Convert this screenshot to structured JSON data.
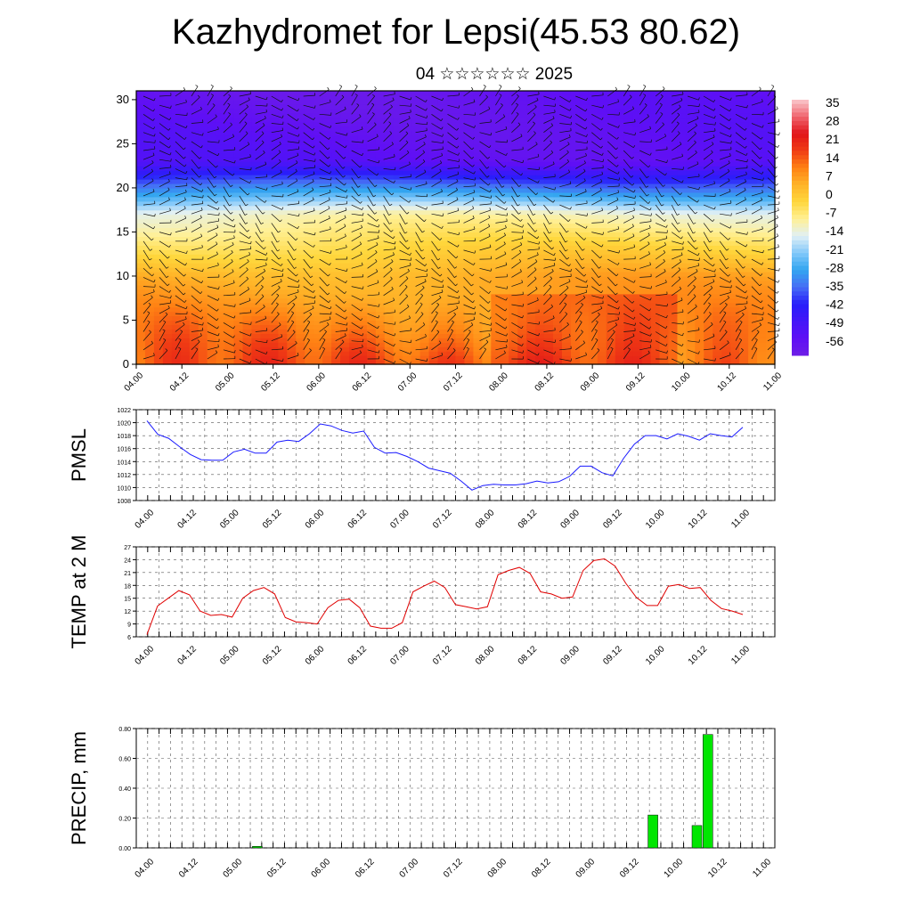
{
  "title": "Kazhydromet for Lepsi(45.53 80.62)",
  "subtitle": "04 ☆☆☆☆☆☆ 2025",
  "time_ticks": [
    "04.00",
    "04.12",
    "05.00",
    "05.12",
    "06.00",
    "06.12",
    "07.00",
    "07.12",
    "08.00",
    "08.12",
    "09.00",
    "09.12",
    "10.00",
    "10.12",
    "11.00"
  ],
  "chart_data": [
    {
      "type": "heatmap",
      "title": "",
      "xlabel": "",
      "ylabel": "",
      "x_ticks": [
        "04.00",
        "04.12",
        "05.00",
        "05.12",
        "06.00",
        "06.12",
        "07.00",
        "07.12",
        "08.00",
        "08.12",
        "09.00",
        "09.12",
        "10.00",
        "10.12",
        "11.00"
      ],
      "y_ticks": [
        0,
        5,
        10,
        15,
        20,
        25,
        30
      ],
      "ylim": [
        0,
        31
      ],
      "colorbar_labels": [
        "35",
        "28",
        "21",
        "14",
        "7",
        "0",
        "-7",
        "-14",
        "-21",
        "-28",
        "-35",
        "-42",
        "-49",
        "-56"
      ],
      "colorbar_range": [
        -63,
        42
      ],
      "overlay": "wind barbs"
    },
    {
      "type": "line",
      "ylabel": "PMSL",
      "ylim": [
        1008,
        1022
      ],
      "y_ticks": [
        "1008",
        "1010",
        "1012",
        "1014",
        "1016",
        "1018",
        "1020",
        "1022"
      ],
      "line_color": "#1a1aff",
      "x_ticks": [
        "04.00",
        "04.12",
        "05.00",
        "05.12",
        "06.00",
        "06.12",
        "07.00",
        "07.12",
        "08.00",
        "08.12",
        "09.00",
        "09.12",
        "10.00",
        "10.12",
        "11.00"
      ],
      "series": [
        {
          "values": [
            1020.3,
            1018.2,
            1017.6,
            1016.3,
            1015.1,
            1014.3,
            1014.2,
            1014.2,
            1015.5,
            1015.9,
            1015.3,
            1015.3,
            1017.0,
            1017.3,
            1017.1,
            1018.3,
            1019.8,
            1019.5,
            1018.8,
            1018.4,
            1018.7,
            1016.2,
            1015.3,
            1015.4,
            1014.8,
            1014.0,
            1013.0,
            1012.6,
            1012.2,
            1011.0,
            1009.6,
            1010.3,
            1010.5,
            1010.4,
            1010.4,
            1010.6,
            1011.0,
            1010.7,
            1010.9,
            1011.7,
            1013.3,
            1013.3,
            1012.3,
            1011.8,
            1014.5,
            1016.7,
            1018.0,
            1018.0,
            1017.5,
            1018.3,
            1017.9,
            1017.3,
            1018.3,
            1018.0,
            1017.8,
            1019.3
          ]
        }
      ]
    },
    {
      "type": "line",
      "ylabel": "TEMP at 2 M",
      "ylim": [
        6,
        27
      ],
      "y_ticks": [
        "6",
        "9",
        "12",
        "15",
        "18",
        "21",
        "24",
        "27"
      ],
      "line_color": "#e00000",
      "x_ticks": [
        "04.00",
        "04.12",
        "05.00",
        "05.12",
        "06.00",
        "06.12",
        "07.00",
        "07.12",
        "08.00",
        "08.12",
        "09.00",
        "09.12",
        "10.00",
        "10.12",
        "11.00"
      ],
      "series": [
        {
          "values": [
            6.5,
            13.2,
            15.0,
            16.8,
            15.8,
            12.0,
            11.0,
            11.2,
            10.6,
            15.0,
            16.8,
            17.5,
            16.0,
            10.5,
            9.5,
            9.3,
            9.0,
            12.8,
            14.5,
            14.8,
            12.8,
            8.5,
            8.0,
            8.0,
            9.3,
            16.5,
            17.8,
            19.0,
            17.5,
            13.5,
            13.0,
            12.5,
            13.0,
            20.5,
            21.5,
            22.2,
            20.8,
            16.5,
            16.0,
            15.0,
            15.3,
            21.5,
            23.8,
            24.2,
            22.5,
            18.5,
            15.2,
            13.3,
            13.3,
            17.8,
            18.2,
            17.3,
            17.5,
            14.5,
            12.6,
            12.0,
            11.2
          ]
        }
      ]
    },
    {
      "type": "bar",
      "ylabel": "PRECIP, mm",
      "ylim": [
        0,
        0.8
      ],
      "y_ticks": [
        "0.00",
        "0.20",
        "0.40",
        "0.60",
        "0.80"
      ],
      "bar_color": "#00e600",
      "x_ticks": [
        "04.00",
        "04.12",
        "05.00",
        "05.12",
        "06.00",
        "06.12",
        "07.00",
        "07.12",
        "08.00",
        "08.12",
        "09.00",
        "09.12",
        "10.00",
        "10.12",
        "11.00"
      ],
      "bars": [
        {
          "time": "05.06",
          "value": 0.01
        },
        {
          "time": "09.18",
          "value": 0.22
        },
        {
          "time": "10.06",
          "value": 0.15
        },
        {
          "time": "10.09",
          "value": 0.76
        }
      ]
    }
  ]
}
